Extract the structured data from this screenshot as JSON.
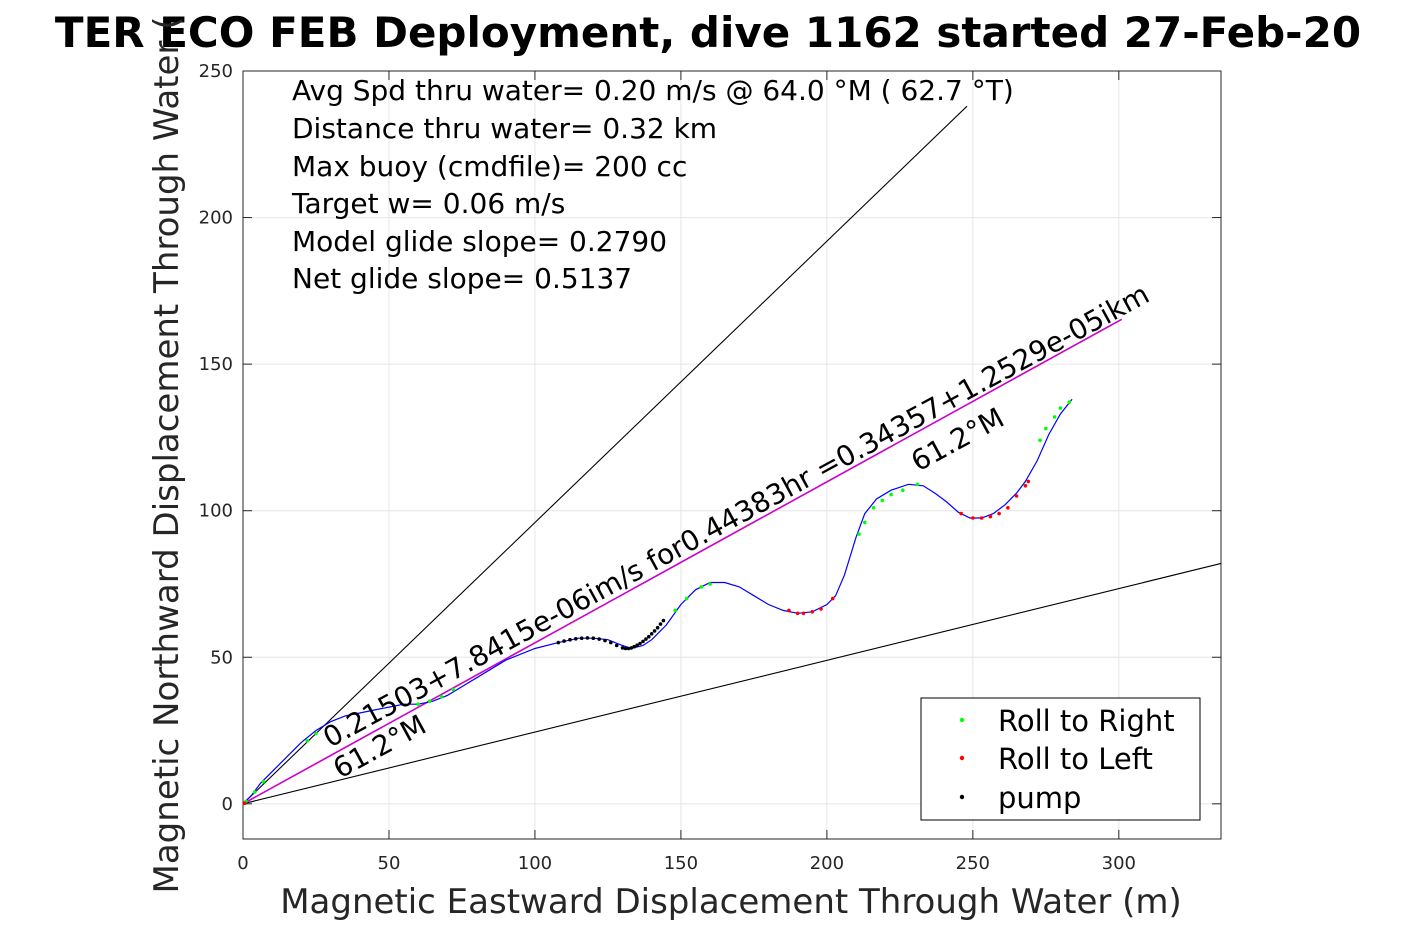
{
  "chart_data": {
    "type": "line",
    "title": "TER ECO FEB Deployment, dive 1162 started 27-Feb-20",
    "xlabel": "Magnetic Eastward Displacement Through Water (m)",
    "ylabel": "Magnetic Northward Displacement Through Water (",
    "xlim": [
      0,
      335
    ],
    "ylim": [
      -12,
      250
    ],
    "xticks": [
      0,
      50,
      100,
      150,
      200,
      250,
      300
    ],
    "yticks": [
      0,
      50,
      100,
      150,
      200,
      250
    ],
    "grid": true,
    "info_lines": [
      "Avg Spd thru water=  0.20 m/s @  64.0 °M ( 62.7 °T)",
      "Distance thru water=  0.32 km",
      "Max buoy (cmdfile)= 200 cc",
      "Target w= 0.06 m/s",
      "Model glide slope= 0.2790",
      "Net glide slope= 0.5137"
    ],
    "current_label": "0.21503+7.8415e-06im/s for0.44383hr =0.34357+1.2529e-05ikm",
    "heading_labels": [
      "61.2°M",
      "61.2°M"
    ],
    "legend": {
      "position": "bottom-right",
      "entries": [
        {
          "name": "Roll to Right",
          "color": "#00ff00"
        },
        {
          "name": "Roll to Left",
          "color": "#ff0000"
        },
        {
          "name": "pump",
          "color": "#000000"
        }
      ]
    },
    "series": [
      {
        "role": "track",
        "color": "#0000ff",
        "x": [
          0,
          3,
          6,
          10,
          15,
          20,
          25,
          30,
          35,
          40,
          45,
          50,
          55,
          60,
          65,
          70,
          75,
          80,
          90,
          100,
          108,
          115,
          120,
          125,
          130,
          133,
          137,
          140,
          145,
          150,
          155,
          160,
          165,
          170,
          175,
          180,
          185,
          190,
          195,
          200,
          203,
          206,
          210,
          213,
          217,
          222,
          228,
          233,
          237,
          241,
          245,
          249,
          253,
          257,
          261,
          265,
          268,
          272,
          276,
          280,
          284
        ],
        "y": [
          0,
          3,
          7,
          11,
          16,
          21,
          25,
          28,
          30,
          31,
          32,
          33,
          34,
          34,
          35,
          37,
          40,
          43,
          49,
          53,
          55,
          56.5,
          56.5,
          56,
          54,
          53,
          54,
          56,
          61,
          68,
          73,
          75.5,
          75.5,
          74,
          71,
          68,
          66,
          65,
          65.5,
          68,
          71,
          78,
          91,
          99,
          104,
          107,
          109,
          108.5,
          106,
          103,
          99.5,
          97.5,
          97.5,
          99,
          102,
          106,
          110,
          117,
          126,
          133,
          138
        ]
      },
      {
        "role": "roll-right",
        "color": "#00ff00",
        "x": [
          1,
          4,
          7,
          22,
          25,
          60,
          64,
          68,
          72,
          148,
          152,
          157,
          160,
          211,
          213,
          216,
          219,
          222,
          226,
          231,
          273,
          275,
          278,
          280,
          283
        ],
        "y": [
          0.8,
          4,
          7.5,
          21.5,
          24,
          34,
          35,
          36.5,
          39,
          66,
          70,
          74,
          75,
          92,
          96,
          101,
          103.5,
          105.5,
          107,
          109,
          124,
          128,
          132,
          135,
          137
        ]
      },
      {
        "role": "roll-left",
        "color": "#ff0000",
        "x": [
          0.5,
          187,
          190,
          192,
          195,
          198,
          202,
          246,
          250,
          253,
          256,
          259,
          262,
          265,
          268,
          269
        ],
        "y": [
          0.2,
          66,
          65,
          65,
          65.5,
          66.5,
          70,
          99,
          97.5,
          97.5,
          98,
          99,
          101,
          105,
          108.5,
          110
        ],
        "pump_markers": []
      },
      {
        "role": "pump",
        "color": "#000000",
        "x": [
          108,
          110,
          112,
          114,
          116,
          118,
          120,
          122,
          124,
          126,
          128,
          130,
          131,
          132,
          133,
          134,
          135,
          136,
          137,
          138,
          139,
          140,
          141,
          142,
          143,
          144
        ],
        "y": [
          55,
          55.5,
          56,
          56.3,
          56.5,
          56.6,
          56.5,
          56.2,
          55.7,
          55,
          54,
          53.2,
          53,
          53,
          53.2,
          53.6,
          54.1,
          54.7,
          55.4,
          56.2,
          57,
          58,
          59,
          60.1,
          61.3,
          62.5
        ]
      },
      {
        "role": "net-glide-line",
        "color": "#cc00cc",
        "x": [
          0,
          301
        ],
        "y": [
          0,
          165.3
        ]
      },
      {
        "role": "envelope-upper",
        "color": "#000000",
        "x": [
          0,
          248
        ],
        "y": [
          0,
          238
        ]
      },
      {
        "role": "envelope-lower",
        "color": "#000000",
        "x": [
          0,
          335
        ],
        "y": [
          0,
          82
        ]
      }
    ]
  }
}
